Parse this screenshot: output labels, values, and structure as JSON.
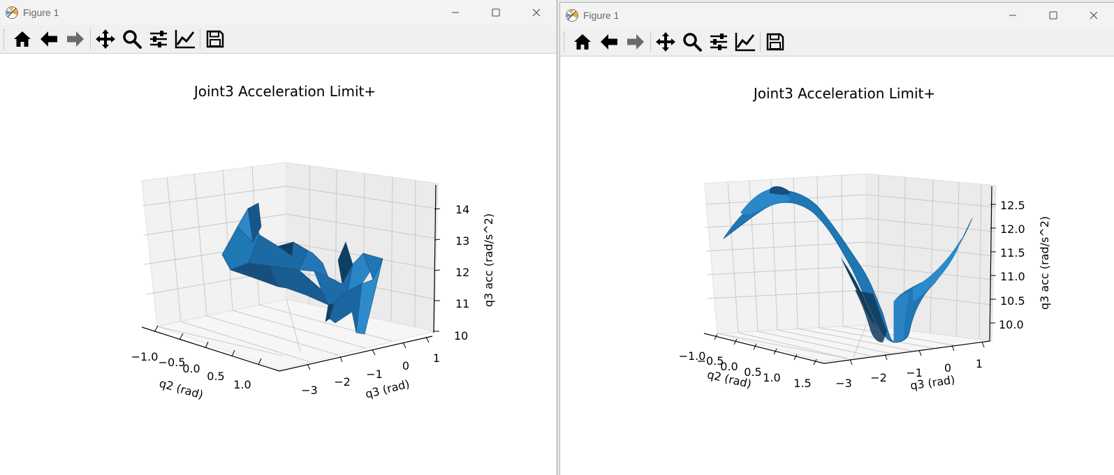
{
  "windows": [
    {
      "title": "Figure 1",
      "toolbar": [
        "home-icon",
        "back-arrow-icon",
        "forward-arrow-icon",
        "pan-icon",
        "zoom-icon",
        "configure-subplots-icon",
        "edit-axis-icon",
        "save-icon"
      ],
      "chart_data": {
        "type": "surface3d",
        "title": "Joint3 Acceleration Limit+",
        "xlabel": "q2 (rad)",
        "ylabel": "q3 (rad)",
        "zlabel": "q3 acc (rad/s^2)",
        "xticks": [
          "−1.0",
          "−0.5",
          "0.0",
          "0.5",
          "1.0"
        ],
        "yticks": [
          "−3",
          "−2",
          "−1",
          "0",
          "1"
        ],
        "zticks": [
          "10",
          "11",
          "12",
          "13",
          "14"
        ],
        "color": "#1f77b4"
      }
    },
    {
      "title": "Figure 1",
      "toolbar": [
        "home-icon",
        "back-arrow-icon",
        "forward-arrow-icon",
        "pan-icon",
        "zoom-icon",
        "configure-subplots-icon",
        "edit-axis-icon",
        "save-icon"
      ],
      "chart_data": {
        "type": "surface3d",
        "title": "Joint3 Acceleration Limit+",
        "xlabel": "q2 (rad)",
        "ylabel": "q3 (rad)",
        "zlabel": "q3 acc (rad/s^2)",
        "xticks": [
          "−1.0",
          "−0.5",
          "0.0",
          "0.5",
          "1.0",
          "1.5"
        ],
        "yticks": [
          "−3",
          "−2",
          "−1",
          "0",
          "1"
        ],
        "zticks": [
          "10.0",
          "10.5",
          "11.0",
          "11.5",
          "12.0",
          "12.5"
        ],
        "color": "#1f77b4"
      }
    }
  ]
}
